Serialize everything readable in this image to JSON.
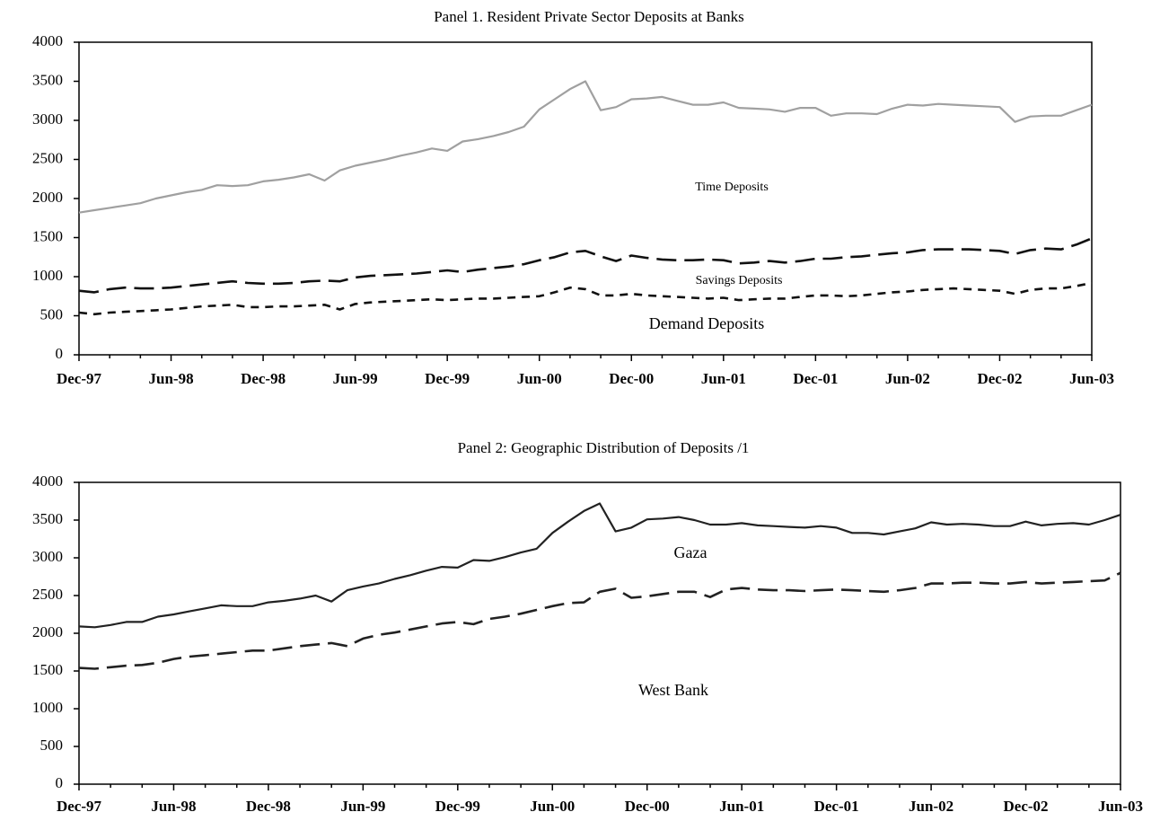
{
  "chart_data": [
    {
      "type": "line",
      "title": "Panel 1. Resident Private Sector Deposits at Banks",
      "categories": [
        "Dec-97",
        null,
        null,
        null,
        null,
        null,
        "Jun-98",
        null,
        null,
        null,
        null,
        null,
        "Dec-98",
        null,
        null,
        null,
        null,
        null,
        "Jun-99",
        null,
        null,
        null,
        null,
        null,
        "Dec-99",
        null,
        null,
        null,
        null,
        null,
        "Jun-00",
        null,
        null,
        null,
        null,
        null,
        "Dec-00",
        null,
        null,
        null,
        null,
        null,
        "Jun-01",
        null,
        null,
        null,
        null,
        null,
        "Dec-01",
        null,
        null,
        null,
        null,
        null,
        "Jun-02",
        null,
        null,
        null,
        null,
        null,
        "Dec-02",
        null,
        null,
        null,
        null,
        null,
        "Jun-03"
      ],
      "ylim": [
        0,
        4000
      ],
      "yticks": [
        0,
        500,
        1000,
        1500,
        2000,
        2500,
        3000,
        3500,
        4000
      ],
      "series": [
        {
          "name": "Time Deposits",
          "color": "#a0a0a0",
          "style": "solid",
          "values": [
            1820,
            1850,
            1880,
            1910,
            1940,
            2000,
            2040,
            2080,
            2110,
            2170,
            2160,
            2170,
            2220,
            2240,
            2270,
            2310,
            2230,
            2360,
            2420,
            2460,
            2500,
            2550,
            2590,
            2640,
            2610,
            2730,
            2760,
            2800,
            2850,
            2920,
            3140,
            3270,
            3400,
            3500,
            3130,
            3170,
            3270,
            3280,
            3300,
            3250,
            3200,
            3200,
            3230,
            3160,
            3150,
            3140,
            3110,
            3160,
            3160,
            3060,
            3090,
            3090,
            3080,
            3150,
            3200,
            3190,
            3210,
            3200,
            3190,
            3180,
            3170,
            2980,
            3050,
            3060,
            3060,
            3130,
            3200
          ]
        },
        {
          "name": "Savings Deposits",
          "color": "#111111",
          "style": "dashed",
          "values": [
            820,
            800,
            840,
            860,
            850,
            850,
            860,
            880,
            900,
            920,
            940,
            920,
            910,
            910,
            920,
            940,
            950,
            940,
            990,
            1010,
            1020,
            1030,
            1040,
            1060,
            1080,
            1060,
            1090,
            1110,
            1130,
            1160,
            1210,
            1250,
            1310,
            1330,
            1260,
            1200,
            1270,
            1240,
            1220,
            1210,
            1210,
            1220,
            1210,
            1170,
            1180,
            1200,
            1180,
            1200,
            1230,
            1230,
            1250,
            1260,
            1280,
            1300,
            1310,
            1340,
            1350,
            1350,
            1350,
            1340,
            1330,
            1290,
            1340,
            1360,
            1350,
            1410,
            1490
          ]
        },
        {
          "name": "Demand Deposits",
          "color": "#111111",
          "style": "dotted",
          "values": [
            540,
            520,
            540,
            550,
            560,
            570,
            580,
            600,
            620,
            630,
            640,
            610,
            610,
            620,
            620,
            630,
            640,
            580,
            650,
            670,
            680,
            690,
            700,
            710,
            700,
            710,
            720,
            720,
            730,
            740,
            750,
            800,
            860,
            840,
            760,
            760,
            780,
            760,
            750,
            740,
            730,
            720,
            730,
            700,
            710,
            720,
            720,
            740,
            760,
            760,
            750,
            760,
            780,
            800,
            810,
            830,
            840,
            850,
            840,
            830,
            820,
            780,
            830,
            850,
            850,
            880,
            920
          ]
        }
      ]
    },
    {
      "type": "line",
      "title": "Panel 2: Geographic Distribution of Deposits /1",
      "categories": [
        "Dec-97",
        null,
        null,
        null,
        null,
        null,
        "Jun-98",
        null,
        null,
        null,
        null,
        null,
        "Dec-98",
        null,
        null,
        null,
        null,
        null,
        "Jun-99",
        null,
        null,
        null,
        null,
        null,
        "Dec-99",
        null,
        null,
        null,
        null,
        null,
        "Jun-00",
        null,
        null,
        null,
        null,
        null,
        "Dec-00",
        null,
        null,
        null,
        null,
        null,
        "Jun-01",
        null,
        null,
        null,
        null,
        null,
        "Dec-01",
        null,
        null,
        null,
        null,
        null,
        "Jun-02",
        null,
        null,
        null,
        null,
        null,
        "Dec-02",
        null,
        null,
        null,
        null,
        null,
        "Jun-03"
      ],
      "ylim": [
        0,
        4000
      ],
      "yticks": [
        0,
        500,
        1000,
        1500,
        2000,
        2500,
        3000,
        3500,
        4000
      ],
      "series": [
        {
          "name": "Gaza",
          "color": "#222222",
          "style": "solid",
          "values": [
            2090,
            2080,
            2110,
            2150,
            2150,
            2220,
            2250,
            2290,
            2330,
            2370,
            2360,
            2360,
            2410,
            2430,
            2460,
            2500,
            2420,
            2570,
            2620,
            2660,
            2720,
            2770,
            2830,
            2880,
            2870,
            2970,
            2960,
            3010,
            3070,
            3120,
            3330,
            3480,
            3620,
            3720,
            3350,
            3400,
            3510,
            3520,
            3540,
            3500,
            3440,
            3440,
            3460,
            3430,
            3420,
            3410,
            3400,
            3420,
            3400,
            3330,
            3330,
            3310,
            3350,
            3390,
            3470,
            3440,
            3450,
            3440,
            3420,
            3420,
            3480,
            3430,
            3450,
            3460,
            3440,
            3500,
            3570
          ]
        },
        {
          "name": "West Bank",
          "color": "#222222",
          "style": "dashed",
          "values": [
            1540,
            1530,
            1550,
            1570,
            1580,
            1610,
            1660,
            1690,
            1710,
            1730,
            1750,
            1770,
            1770,
            1800,
            1830,
            1850,
            1870,
            1830,
            1930,
            1980,
            2010,
            2050,
            2090,
            2130,
            2150,
            2120,
            2190,
            2220,
            2260,
            2310,
            2360,
            2400,
            2410,
            2550,
            2590,
            2470,
            2490,
            2520,
            2550,
            2550,
            2480,
            2580,
            2600,
            2580,
            2570,
            2570,
            2560,
            2570,
            2580,
            2570,
            2560,
            2550,
            2570,
            2600,
            2660,
            2660,
            2670,
            2670,
            2660,
            2660,
            2680,
            2660,
            2670,
            2680,
            2690,
            2700,
            2800
          ]
        }
      ]
    }
  ]
}
